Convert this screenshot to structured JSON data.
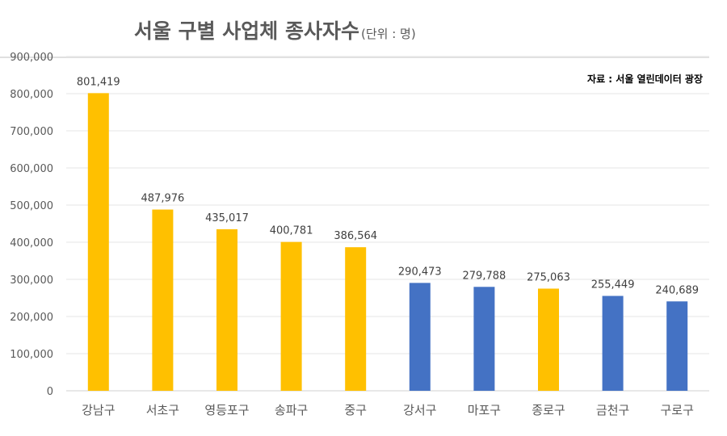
{
  "chart_data": {
    "type": "bar",
    "title": "서울 구별 사업체 종사자수",
    "title_unit": "(단위 : 명)",
    "source": "자료 : 서울 열린데이터 광장",
    "xlabel": "",
    "ylabel": "",
    "ylim": [
      0,
      900000
    ],
    "yticks": [
      0,
      100000,
      200000,
      300000,
      400000,
      500000,
      600000,
      700000,
      800000,
      900000
    ],
    "ytick_labels": [
      "0",
      "100,000",
      "200,000",
      "300,000",
      "400,000",
      "500,000",
      "600,000",
      "700,000",
      "800,000",
      "900,000"
    ],
    "grid": true,
    "categories": [
      "강남구",
      "서초구",
      "영등포구",
      "송파구",
      "중구",
      "강서구",
      "마포구",
      "종로구",
      "금천구",
      "구로구"
    ],
    "values": [
      801419,
      487976,
      435017,
      400781,
      386564,
      290473,
      279788,
      275063,
      255449,
      240689
    ],
    "value_labels": [
      "801,419",
      "487,976",
      "435,017",
      "400,781",
      "386,564",
      "290,473",
      "279,788",
      "275,063",
      "255,449",
      "240,689"
    ],
    "bar_colors": [
      "#FFC000",
      "#FFC000",
      "#FFC000",
      "#FFC000",
      "#FFC000",
      "#4472C4",
      "#4472C4",
      "#FFC000",
      "#4472C4",
      "#4472C4"
    ]
  }
}
